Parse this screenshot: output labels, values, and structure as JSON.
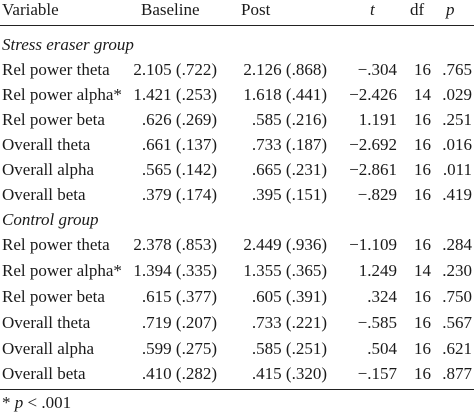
{
  "header": {
    "variable": "Variable",
    "baseline": "Baseline",
    "post": "Post",
    "t": "t",
    "df": "df",
    "p": "p"
  },
  "groups": [
    {
      "title": "Stress eraser group",
      "rows": [
        {
          "variable": "Rel power theta",
          "baseline": "2.105 (.722)",
          "post": "2.126 (.868)",
          "t": "−.304",
          "df": "16",
          "p": ".765"
        },
        {
          "variable": "Rel power alpha*",
          "baseline": "1.421 (.253)",
          "post": "1.618 (.441)",
          "t": "−2.426",
          "df": "14",
          "p": ".029"
        },
        {
          "variable": "Rel power beta",
          "baseline": ".626 (.269)",
          "post": ".585 (.216)",
          "t": "1.191",
          "df": "16",
          "p": ".251"
        },
        {
          "variable": "Overall theta",
          "baseline": ".661 (.137)",
          "post": ".733 (.187)",
          "t": "−2.692",
          "df": "16",
          "p": ".016"
        },
        {
          "variable": "Overall alpha",
          "baseline": ".565 (.142)",
          "post": ".665 (.231)",
          "t": "−2.861",
          "df": "16",
          "p": ".011"
        },
        {
          "variable": "Overall beta",
          "baseline": ".379 (.174)",
          "post": ".395 (.151)",
          "t": "−.829",
          "df": "16",
          "p": ".419"
        }
      ]
    },
    {
      "title": "Control group",
      "rows": [
        {
          "variable": "Rel power theta",
          "baseline": "2.378 (.853)",
          "post": "2.449 (.936)",
          "t": "−1.109",
          "df": "16",
          "p": ".284"
        },
        {
          "variable": "Rel power alpha*",
          "baseline": "1.394 (.335)",
          "post": "1.355 (.365)",
          "t": "1.249",
          "df": "14",
          "p": ".230"
        },
        {
          "variable": "Rel power beta",
          "baseline": ".615 (.377)",
          "post": ".605 (.391)",
          "t": ".324",
          "df": "16",
          "p": ".750"
        },
        {
          "variable": "Overall theta",
          "baseline": ".719 (.207)",
          "post": ".733 (.221)",
          "t": "−.585",
          "df": "16",
          "p": ".567"
        },
        {
          "variable": "Overall alpha",
          "baseline": ".599 (.275)",
          "post": ".585 (.251)",
          "t": ".504",
          "df": "16",
          "p": ".621"
        },
        {
          "variable": "Overall beta",
          "baseline": ".410 (.282)",
          "post": ".415 (.320)",
          "t": "−.157",
          "df": "16",
          "p": ".877"
        }
      ]
    }
  ],
  "footnote": {
    "star": "*",
    "p": "p",
    "rest": "< .001"
  }
}
